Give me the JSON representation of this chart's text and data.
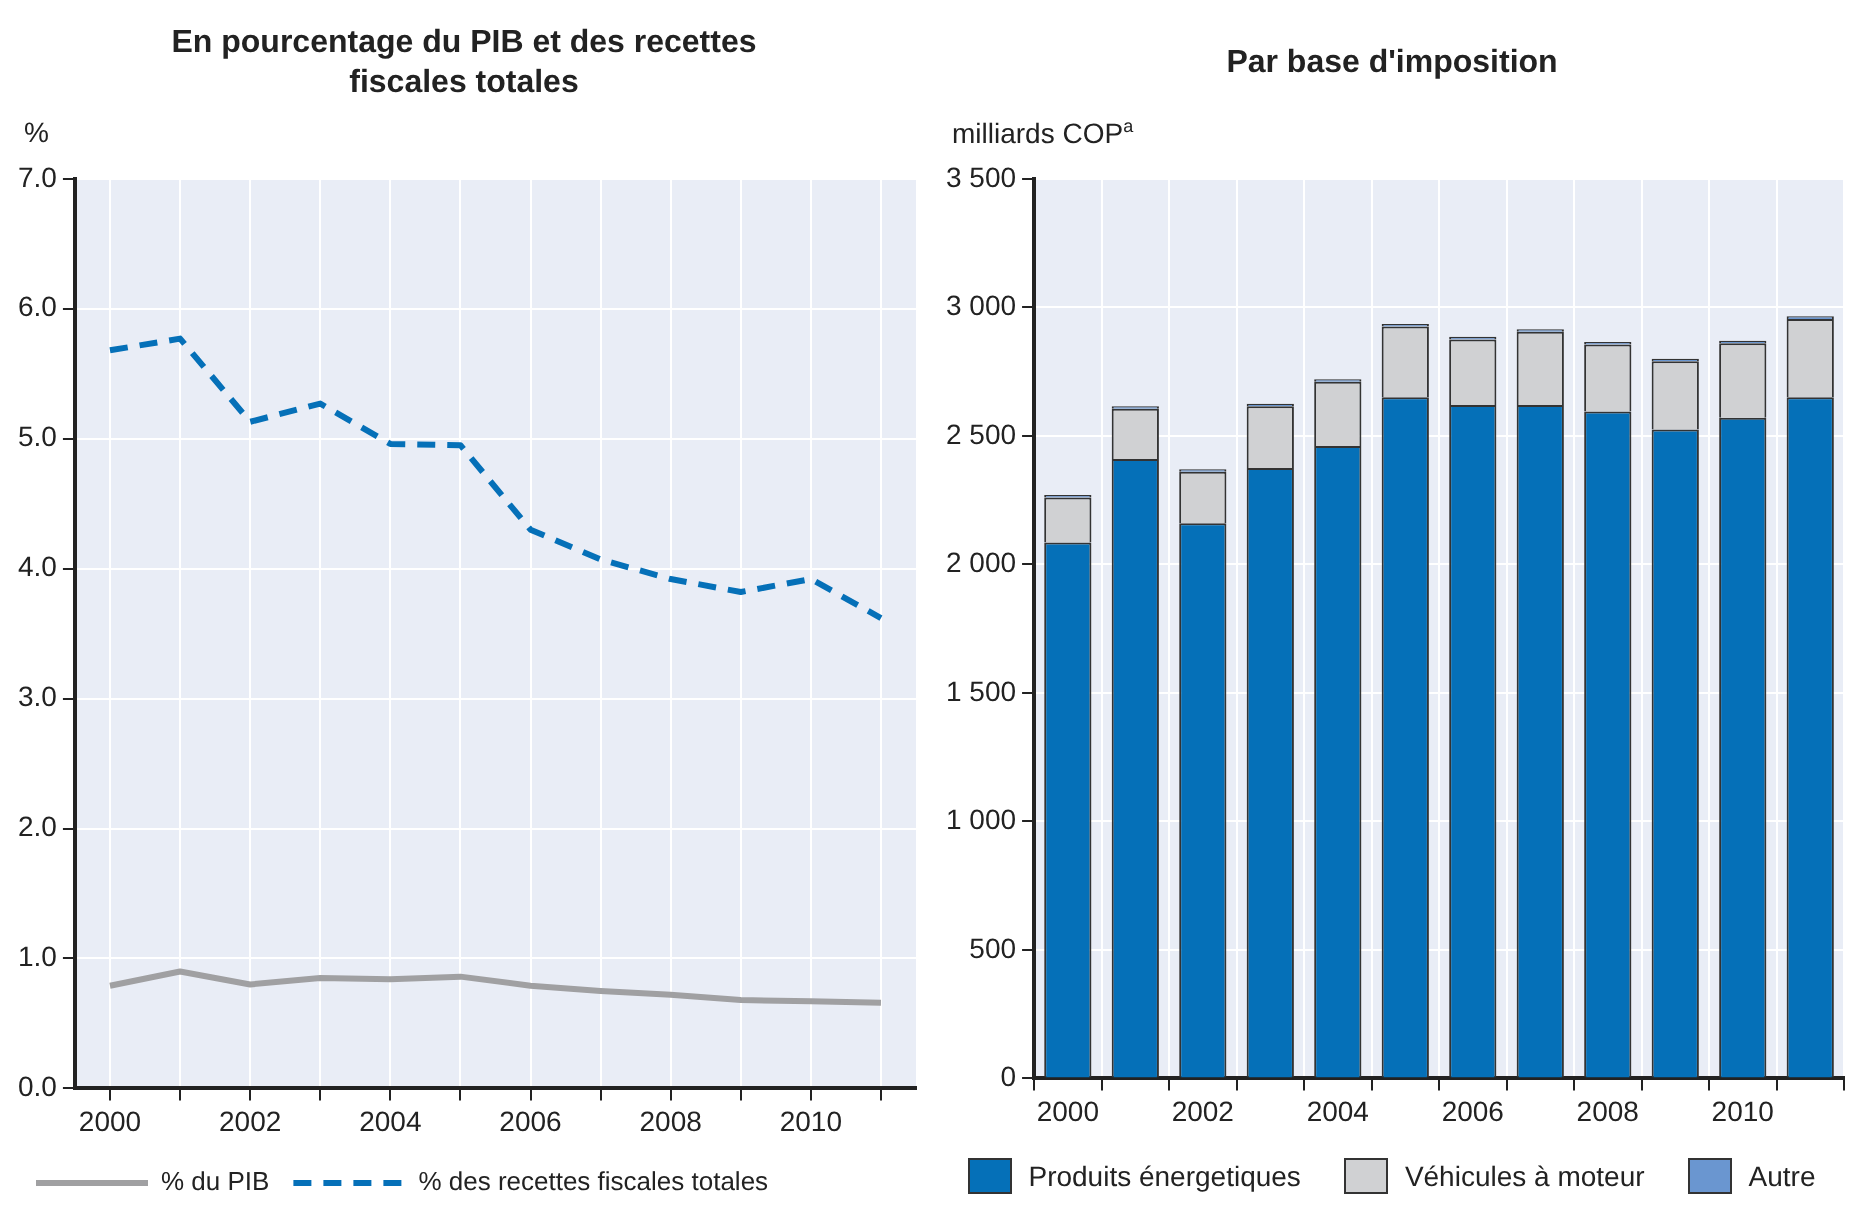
{
  "chart_data": [
    {
      "type": "line",
      "title": "En pourcentage du PIB et des recettes fiscales totales",
      "ylabel": "%",
      "categories": [
        "2000",
        null,
        "2002",
        null,
        "2004",
        null,
        "2006",
        null,
        "2008",
        null,
        "2010",
        null
      ],
      "series": [
        {
          "name": "% du PIB",
          "color": "#a0a0a2",
          "line_style": "solid",
          "values": [
            0.79,
            0.9,
            0.8,
            0.85,
            0.84,
            0.86,
            0.79,
            0.75,
            0.72,
            0.68,
            0.67,
            0.66
          ]
        },
        {
          "name": "% des recettes fiscales totales",
          "color": "#0570b8",
          "line_style": "dashed",
          "values": [
            5.68,
            5.77,
            5.13,
            5.27,
            4.96,
            4.95,
            4.3,
            4.07,
            3.92,
            3.82,
            3.92,
            3.62
          ]
        }
      ],
      "ylim": [
        0,
        7
      ],
      "yticks": [
        {
          "value": 0,
          "label": "0.0"
        },
        {
          "value": 1,
          "label": "1.0"
        },
        {
          "value": 2,
          "label": "2.0"
        },
        {
          "value": 3,
          "label": "3.0"
        },
        {
          "value": 4,
          "label": "4.0"
        },
        {
          "value": 5,
          "label": "5.0"
        },
        {
          "value": 6,
          "label": "6.0"
        },
        {
          "value": 7,
          "label": "7.0"
        }
      ],
      "grid": true,
      "legend": "bottom left"
    },
    {
      "type": "bar",
      "title": "Par base d'imposition",
      "ylabel": "milliards COP$^{a}$",
      "stacked": true,
      "categories": [
        "2000",
        null,
        "2002",
        null,
        "2004",
        null,
        "2006",
        null,
        "2008",
        null,
        "2010",
        null
      ],
      "series": [
        {
          "name": "Produits énergetiques",
          "color": "#0570b8",
          "values": [
            2085,
            2410,
            2160,
            2375,
            2460,
            2650,
            2620,
            2620,
            2595,
            2525,
            2570,
            2650
          ]
        },
        {
          "name": "Véhicules à moteur",
          "color": "#d0d1d3",
          "values": [
            175,
            195,
            200,
            240,
            250,
            275,
            255,
            285,
            260,
            265,
            290,
            305
          ]
        },
        {
          "name": "Autre",
          "color": "#6a96d0",
          "values": [
            10,
            10,
            10,
            10,
            10,
            10,
            10,
            10,
            10,
            10,
            10,
            10
          ]
        }
      ],
      "ylim": [
        0,
        3500
      ],
      "yticks": [
        0,
        500,
        {
          "value": 1000,
          "label": "1 000"
        },
        {
          "value": 1500,
          "label": "1 500"
        },
        {
          "value": 2000,
          "label": "2 000"
        },
        {
          "value": 2500,
          "label": "2 500"
        },
        {
          "value": 3000,
          "label": "3 000"
        },
        {
          "value": 3500,
          "label": "3 500"
        }
      ],
      "grid": true,
      "legend": "bottom"
    }
  ]
}
